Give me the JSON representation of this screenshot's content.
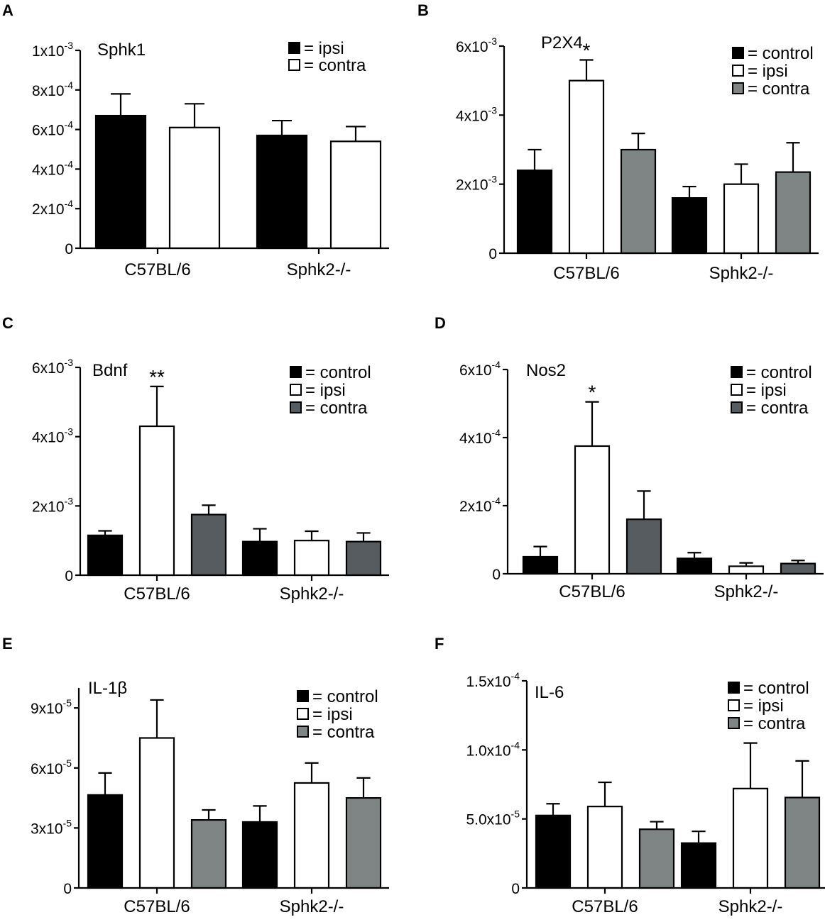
{
  "colors": {
    "control": "#000000",
    "ipsi": "#ffffff",
    "contra_gray": "#7f8585",
    "contra_dark": "#565c5f",
    "axis": "#000000"
  },
  "chart_data": [
    {
      "panel": "A",
      "type": "bar",
      "title": "Sphk1",
      "categories": [
        "C57BL/6",
        "Sphk2-/-"
      ],
      "legend": [
        {
          "key": "ipsi",
          "label": "= ipsi"
        },
        {
          "key": "contra",
          "label": "= contra"
        }
      ],
      "series": [
        {
          "name": "ipsi",
          "fill": "#000000",
          "values": [
            0.00067,
            0.00057
          ],
          "errors": [
            0.00011,
            7.5e-05
          ]
        },
        {
          "name": "contra",
          "fill": "#ffffff",
          "values": [
            0.00061,
            0.00054
          ],
          "errors": [
            0.00012,
            7.5e-05
          ]
        }
      ],
      "ylim": [
        0,
        0.001
      ],
      "yticks": [
        {
          "value": 0,
          "mant": "0",
          "exp": ""
        },
        {
          "value": 0.0002,
          "mant": "2x10",
          "exp": "-4"
        },
        {
          "value": 0.0004,
          "mant": "4x10",
          "exp": "-4"
        },
        {
          "value": 0.0006,
          "mant": "6x10",
          "exp": "-4"
        },
        {
          "value": 0.0008,
          "mant": "8x10",
          "exp": "-4"
        },
        {
          "value": 0.001,
          "mant": "1x10",
          "exp": "-3"
        }
      ],
      "significance": []
    },
    {
      "panel": "B",
      "type": "bar",
      "title": "P2X4",
      "categories": [
        "C57BL/6",
        "Sphk2-/-"
      ],
      "legend": [
        {
          "key": "control",
          "label": "= control"
        },
        {
          "key": "ipsi",
          "label": "= ipsi"
        },
        {
          "key": "contra",
          "label": "= contra"
        }
      ],
      "series": [
        {
          "name": "control",
          "fill": "#000000",
          "values": [
            0.0024,
            0.0016
          ],
          "errors": [
            0.0006,
            0.00033
          ]
        },
        {
          "name": "ipsi",
          "fill": "#ffffff",
          "values": [
            0.005,
            0.002
          ],
          "errors": [
            0.0006,
            0.00058
          ]
        },
        {
          "name": "contra",
          "fill": "#7f8585",
          "values": [
            0.003,
            0.00235
          ],
          "errors": [
            0.00047,
            0.00085
          ]
        }
      ],
      "ylim": [
        0,
        0.006
      ],
      "yticks": [
        {
          "value": 0,
          "mant": "0",
          "exp": ""
        },
        {
          "value": 0.002,
          "mant": "2x10",
          "exp": "-3"
        },
        {
          "value": 0.004,
          "mant": "4x10",
          "exp": "-3"
        },
        {
          "value": 0.006,
          "mant": "6x10",
          "exp": "-3"
        }
      ],
      "significance": [
        {
          "series": "ipsi",
          "category": 0,
          "label": "*"
        }
      ]
    },
    {
      "panel": "C",
      "type": "bar",
      "title": "Bdnf",
      "categories": [
        "C57BL/6",
        "Sphk2-/-"
      ],
      "legend": [
        {
          "key": "control",
          "label": "= control"
        },
        {
          "key": "ipsi",
          "label": "= ipsi"
        },
        {
          "key": "contra",
          "label": "= contra"
        }
      ],
      "series": [
        {
          "name": "control",
          "fill": "#000000",
          "values": [
            0.00115,
            0.00097
          ],
          "errors": [
            0.00013,
            0.00037
          ]
        },
        {
          "name": "ipsi",
          "fill": "#ffffff",
          "values": [
            0.0043,
            0.001
          ],
          "errors": [
            0.00115,
            0.00027
          ]
        },
        {
          "name": "contra",
          "fill": "#565c5f",
          "values": [
            0.00175,
            0.00097
          ],
          "errors": [
            0.00027,
            0.00025
          ]
        }
      ],
      "ylim": [
        0,
        0.006
      ],
      "yticks": [
        {
          "value": 0,
          "mant": "0",
          "exp": ""
        },
        {
          "value": 0.002,
          "mant": "2x10",
          "exp": "-3"
        },
        {
          "value": 0.004,
          "mant": "4x10",
          "exp": "-3"
        },
        {
          "value": 0.006,
          "mant": "6x10",
          "exp": "-3"
        }
      ],
      "significance": [
        {
          "series": "ipsi",
          "category": 0,
          "label": "**"
        }
      ]
    },
    {
      "panel": "D",
      "type": "bar",
      "title": "Nos2",
      "categories": [
        "C57BL/6",
        "Sphk2-/-"
      ],
      "legend": [
        {
          "key": "control",
          "label": "= control"
        },
        {
          "key": "ipsi",
          "label": "= ipsi"
        },
        {
          "key": "contra",
          "label": "= contra"
        }
      ],
      "series": [
        {
          "name": "control",
          "fill": "#000000",
          "values": [
            5e-05,
            4.5e-05
          ],
          "errors": [
            3e-05,
            1.7e-05
          ]
        },
        {
          "name": "ipsi",
          "fill": "#ffffff",
          "values": [
            0.000375,
            2.2e-05
          ],
          "errors": [
            0.00013,
            1e-05
          ]
        },
        {
          "name": "contra",
          "fill": "#565c5f",
          "values": [
            0.00016,
            3e-05
          ],
          "errors": [
            8.3e-05,
            9e-06
          ]
        }
      ],
      "ylim": [
        0,
        0.0006
      ],
      "yticks": [
        {
          "value": 0,
          "mant": "0",
          "exp": ""
        },
        {
          "value": 0.0002,
          "mant": "2x10",
          "exp": "-4"
        },
        {
          "value": 0.0004,
          "mant": "4x10",
          "exp": "-4"
        },
        {
          "value": 0.0006,
          "mant": "6x10",
          "exp": "-4"
        }
      ],
      "significance": [
        {
          "series": "ipsi",
          "category": 0,
          "label": "*"
        }
      ]
    },
    {
      "panel": "E",
      "type": "bar",
      "title": "IL-1β",
      "categories": [
        "C57BL/6",
        "Sphk2-/-"
      ],
      "legend": [
        {
          "key": "control",
          "label": "= control"
        },
        {
          "key": "ipsi",
          "label": "= ipsi"
        },
        {
          "key": "contra",
          "label": "= contra"
        }
      ],
      "series": [
        {
          "name": "control",
          "fill": "#000000",
          "values": [
            4.65e-05,
            3.3e-05
          ],
          "errors": [
            1.1e-05,
            8e-06
          ]
        },
        {
          "name": "ipsi",
          "fill": "#ffffff",
          "values": [
            7.5e-05,
            5.25e-05
          ],
          "errors": [
            1.9e-05,
            1e-05
          ]
        },
        {
          "name": "contra",
          "fill": "#7f8585",
          "values": [
            3.4e-05,
            4.5e-05
          ],
          "errors": [
            5e-06,
            1e-05
          ]
        }
      ],
      "ylim": [
        0,
        0.0001
      ],
      "yticks": [
        {
          "value": 0,
          "mant": "0",
          "exp": ""
        },
        {
          "value": 3e-05,
          "mant": "3x10",
          "exp": "-5"
        },
        {
          "value": 6e-05,
          "mant": "6x10",
          "exp": "-5"
        },
        {
          "value": 9e-05,
          "mant": "9x10",
          "exp": "-5"
        }
      ],
      "significance": []
    },
    {
      "panel": "F",
      "type": "bar",
      "title": "IL-6",
      "categories": [
        "C57BL/6",
        "Sphk2-/-"
      ],
      "legend": [
        {
          "key": "control",
          "label": "= control"
        },
        {
          "key": "ipsi",
          "label": "= ipsi"
        },
        {
          "key": "contra",
          "label": "= contra"
        }
      ],
      "series": [
        {
          "name": "control",
          "fill": "#000000",
          "values": [
            5.25e-05,
            3.25e-05
          ],
          "errors": [
            8.5e-06,
            8.5e-06
          ]
        },
        {
          "name": "ipsi",
          "fill": "#ffffff",
          "values": [
            5.9e-05,
            7.2e-05
          ],
          "errors": [
            1.75e-05,
            3.3e-05
          ]
        },
        {
          "name": "contra",
          "fill": "#7f8585",
          "values": [
            4.25e-05,
            6.55e-05
          ],
          "errors": [
            5.5e-06,
            2.65e-05
          ]
        }
      ],
      "ylim": [
        0,
        0.00015
      ],
      "yticks": [
        {
          "value": 0,
          "mant": "0",
          "exp": ""
        },
        {
          "value": 5e-05,
          "mant": "5.0x10",
          "exp": "-5"
        },
        {
          "value": 0.0001,
          "mant": "1.0x10",
          "exp": "-4"
        },
        {
          "value": 0.00015,
          "mant": "1.5x10",
          "exp": "-4"
        }
      ],
      "significance": []
    }
  ]
}
